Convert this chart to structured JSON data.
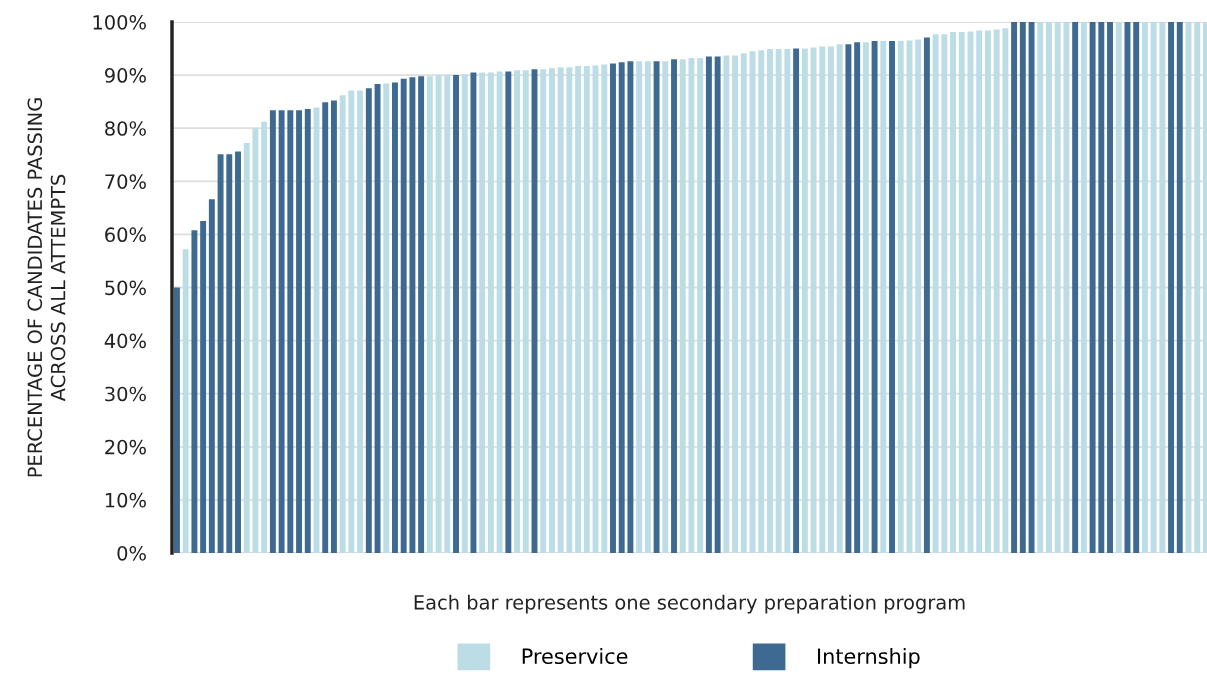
{
  "chart_data": {
    "type": "bar",
    "xlabel": "Each bar represents one secondary preparation program",
    "ylabel": "PERCENTAGE OF CANDIDATES PASSING\nACROSS ALL ATTEMPTS",
    "categories": [
      null,
      null,
      null,
      null,
      null,
      null,
      null,
      null,
      null,
      null,
      null,
      null,
      null,
      null,
      null,
      null,
      null,
      null,
      null,
      null,
      null,
      null,
      null,
      null,
      null,
      null,
      null,
      null,
      null,
      null,
      null,
      null,
      null,
      null,
      null,
      null,
      null,
      null,
      null,
      null,
      null,
      null,
      null,
      null,
      null,
      null,
      null,
      null,
      null,
      null,
      null,
      null,
      null,
      null,
      null,
      null,
      null,
      null,
      null,
      null,
      null,
      null,
      null,
      null,
      null,
      null,
      null,
      null,
      null,
      null,
      null,
      null,
      null,
      null,
      null,
      null,
      null,
      null,
      null,
      null,
      null,
      null,
      null,
      null,
      null,
      null,
      null,
      null,
      null,
      null,
      null,
      null,
      null,
      null,
      null,
      null,
      null,
      null,
      null,
      null,
      null,
      null,
      null,
      null,
      null,
      null,
      null,
      null,
      null,
      null,
      null,
      null,
      null,
      null,
      null,
      null,
      null,
      null,
      null
    ],
    "series": [
      {
        "name": "Preservice",
        "color": "#bcdce6",
        "values": [
          null,
          57.2,
          null,
          null,
          null,
          null,
          null,
          null,
          77.2,
          80.0,
          81.2,
          null,
          null,
          null,
          null,
          null,
          83.9,
          null,
          null,
          86.2,
          87.1,
          87.1,
          null,
          null,
          88.4,
          null,
          null,
          null,
          null,
          89.8,
          90.0,
          90.0,
          null,
          90.1,
          null,
          90.5,
          90.5,
          90.7,
          null,
          90.9,
          90.9,
          null,
          91.1,
          91.3,
          91.5,
          91.5,
          91.7,
          91.7,
          91.8,
          92.0,
          null,
          null,
          null,
          92.6,
          92.6,
          null,
          92.6,
          null,
          93.0,
          93.2,
          93.2,
          null,
          null,
          93.7,
          93.7,
          94.1,
          94.5,
          94.7,
          94.9,
          94.9,
          94.9,
          null,
          95.0,
          95.2,
          95.4,
          95.4,
          95.8,
          null,
          null,
          96.2,
          null,
          96.4,
          null,
          96.4,
          96.5,
          96.7,
          null,
          97.7,
          97.7,
          98.1,
          98.1,
          98.2,
          98.4,
          98.4,
          98.6,
          98.8,
          null,
          null,
          null,
          100,
          100,
          100,
          100,
          null,
          100,
          null,
          null,
          null,
          100,
          null,
          null,
          100,
          100,
          100,
          null,
          null,
          100,
          100,
          100
        ]
      },
      {
        "name": "Internship",
        "color": "#3e6a91",
        "values": [
          50.0,
          null,
          60.8,
          62.5,
          66.6,
          75.1,
          75.1,
          75.6,
          null,
          null,
          null,
          83.4,
          83.4,
          83.4,
          83.4,
          83.6,
          null,
          84.9,
          85.2,
          null,
          null,
          null,
          87.5,
          88.3,
          null,
          88.6,
          89.3,
          89.6,
          89.8,
          null,
          null,
          null,
          90.0,
          null,
          90.5,
          null,
          null,
          null,
          90.7,
          null,
          null,
          91.1,
          null,
          null,
          null,
          null,
          null,
          null,
          null,
          null,
          92.2,
          92.4,
          92.6,
          null,
          null,
          92.6,
          null,
          93.0,
          null,
          null,
          null,
          93.5,
          93.5,
          null,
          null,
          null,
          null,
          null,
          null,
          null,
          null,
          95.0,
          null,
          null,
          null,
          null,
          null,
          95.8,
          96.2,
          null,
          96.4,
          null,
          96.4,
          null,
          null,
          null,
          97.1,
          null,
          null,
          null,
          null,
          null,
          null,
          null,
          null,
          null,
          100,
          100,
          100,
          null,
          null,
          null,
          null,
          100,
          null,
          100,
          100,
          100,
          null,
          100,
          100,
          null,
          null,
          null,
          100,
          100,
          null,
          null,
          null
        ]
      }
    ],
    "ylim": [
      0,
      100
    ],
    "yticks": [
      {
        "value": 0,
        "label": "0%"
      },
      {
        "value": 10,
        "label": "10%"
      },
      {
        "value": 20,
        "label": "20%"
      },
      {
        "value": 30,
        "label": "30%"
      },
      {
        "value": 40,
        "label": "40%"
      },
      {
        "value": 50,
        "label": "50%"
      },
      {
        "value": 60,
        "label": "60%"
      },
      {
        "value": 70,
        "label": "70%"
      },
      {
        "value": 80,
        "label": "80%"
      },
      {
        "value": 90,
        "label": "90%"
      },
      {
        "value": 100,
        "label": "100%"
      }
    ],
    "grid": "y",
    "legend": "bottom",
    "tick_labels": "y"
  }
}
